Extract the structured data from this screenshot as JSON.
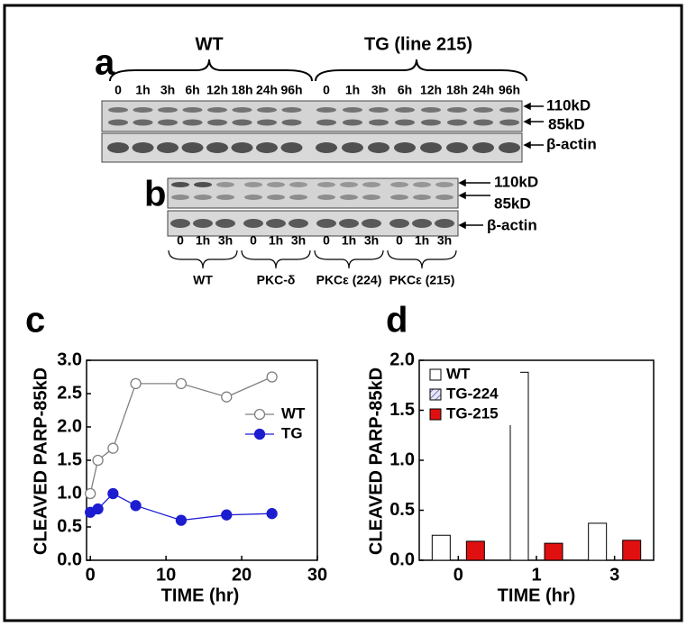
{
  "panel_a": {
    "label": "a",
    "groups": [
      "WT",
      "TG (line 215)"
    ],
    "lanes": [
      [
        "0",
        "1h",
        "3h",
        "6h",
        "12h",
        "18h",
        "24h",
        "96h"
      ],
      [
        "0",
        "1h",
        "3h",
        "6h",
        "12h",
        "18h",
        "24h",
        "96h"
      ]
    ],
    "markers": [
      "110kD",
      "85kD",
      "β-actin"
    ]
  },
  "panel_b": {
    "label": "b",
    "lanes": [
      "0",
      "1h",
      "3h",
      "0",
      "1h",
      "3h",
      "0",
      "1h",
      "3h",
      "0",
      "1h",
      "3h"
    ],
    "groups": [
      "WT",
      "PKC-δ",
      "PKCε (224)",
      "PKCε (215)"
    ],
    "markers": [
      "110kD",
      "85kD",
      "β-actin"
    ]
  },
  "chart_data": [
    {
      "panel_label": "c",
      "type": "line",
      "x_label": "TIME (hr)",
      "y_label": "CLEAVED PARP-85kD",
      "x": [
        0,
        1,
        3,
        6,
        12,
        18,
        24
      ],
      "series": [
        {
          "name": "WT",
          "color": "#808080",
          "marker_fill": "#ffffff",
          "values": [
            1.0,
            1.5,
            1.68,
            2.65,
            2.65,
            2.45,
            2.75
          ]
        },
        {
          "name": "TG",
          "color": "#1c1cd0",
          "marker_fill": "#1c1cd0",
          "values": [
            0.72,
            0.77,
            1.0,
            0.82,
            0.6,
            0.68,
            0.7
          ]
        }
      ],
      "xlim": [
        -0.5,
        30
      ],
      "xticks": [
        0,
        10,
        20,
        30
      ],
      "ylim": [
        0,
        3
      ],
      "yticks": [
        {
          "value": 0,
          "label": "0.0"
        },
        0.5,
        {
          "value": 1,
          "label": "1.0"
        },
        1.5,
        {
          "value": 2,
          "label": "2.0"
        },
        2.5,
        {
          "value": 3,
          "label": "3.0"
        }
      ],
      "legend": "right"
    },
    {
      "panel_label": "d",
      "type": "bar",
      "x_label": "TIME (hr)",
      "y_label": "CLEAVED PARP-85kD",
      "categories": [
        "0",
        "1",
        "3"
      ],
      "series": [
        {
          "name": "WT",
          "color": "#ffffff",
          "values": [
            0.25,
            1.88,
            0.37
          ]
        },
        {
          "name": "TG-224",
          "color": "#c8c8e6",
          "hatch": "/",
          "values": [
            null,
            null,
            null
          ]
        },
        {
          "name": "TG-215",
          "color": "#e01010",
          "values": [
            0.19,
            0.17,
            0.2
          ]
        }
      ],
      "ylim": [
        0,
        2
      ],
      "yticks": [
        {
          "value": 0,
          "label": "0.0"
        },
        0.5,
        {
          "value": 1,
          "label": "1.0"
        },
        1.5,
        {
          "value": 2,
          "label": "2.0"
        }
      ],
      "legend": "upper left"
    }
  ]
}
